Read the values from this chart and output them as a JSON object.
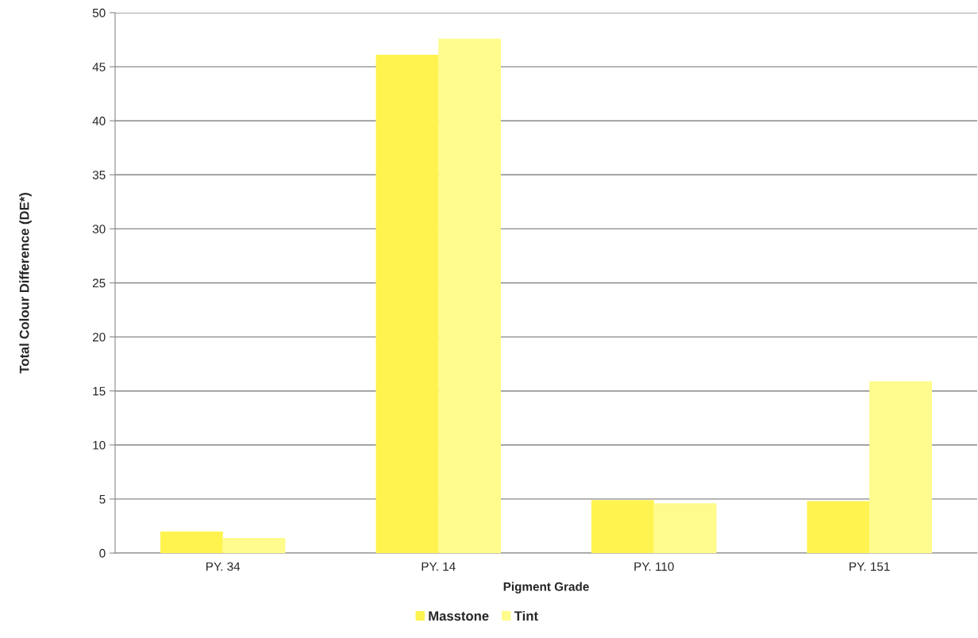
{
  "chart_data": {
    "type": "bar",
    "xlabel": "Pigment Grade",
    "ylabel": "Total Colour Difference (DE*)",
    "categories": [
      "PY. 34",
      "PY. 14",
      "PY. 110",
      "PY. 151"
    ],
    "series": [
      {
        "name": "Masstone",
        "color": "#fff44f",
        "values": [
          2.0,
          46.1,
          4.9,
          4.8
        ]
      },
      {
        "name": "Tint",
        "color": "#fffb8c",
        "values": [
          1.4,
          47.6,
          4.6,
          15.9
        ]
      }
    ],
    "ylim": [
      0,
      50
    ],
    "yticks": [
      0,
      5,
      10,
      15,
      20,
      25,
      30,
      35,
      40,
      45,
      50
    ],
    "grid": "y",
    "legend": "bottom"
  }
}
